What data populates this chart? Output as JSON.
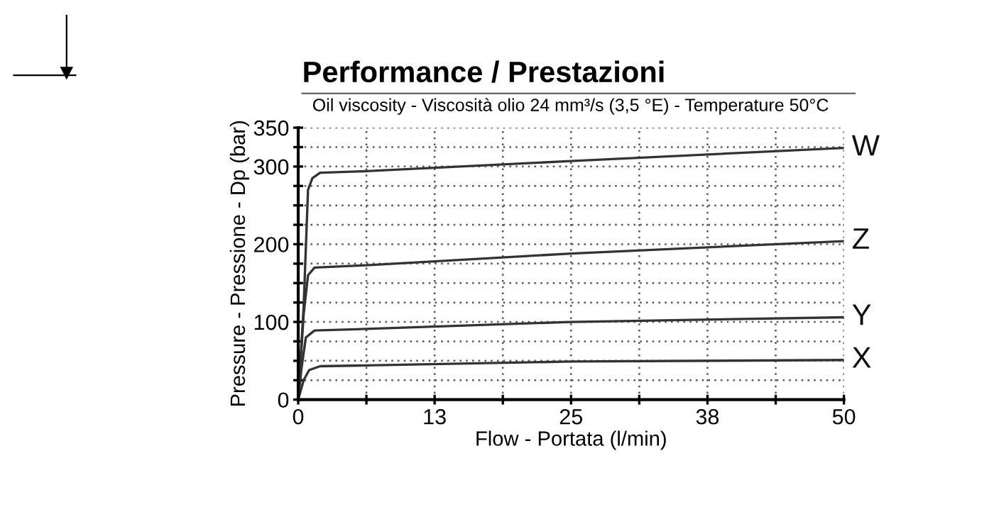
{
  "chart_data": {
    "type": "line",
    "title": "Performance / Prestazioni",
    "subtitle": "Oil viscosity - Viscosità olio 24 mm³/s (3,5 °E) - Temperature 50°C",
    "xlabel": "Flow - Portata (l/min)",
    "ylabel": "Pressure - Pressione - Dp (bar)",
    "xlim": [
      0,
      50
    ],
    "ylim": [
      0,
      350
    ],
    "xticks": [
      0,
      {
        "value": 6.25,
        "label": null
      },
      {
        "value": 12.5,
        "label": "13"
      },
      {
        "value": 18.75,
        "label": null
      },
      25,
      {
        "value": 31.25,
        "label": null
      },
      {
        "value": 37.5,
        "label": "38"
      },
      {
        "value": 43.75,
        "label": null
      },
      50
    ],
    "yticks": [
      0,
      {
        "value": 25,
        "label": null
      },
      {
        "value": 50,
        "label": null
      },
      {
        "value": 75,
        "label": null
      },
      100,
      {
        "value": 125,
        "label": null
      },
      {
        "value": 150,
        "label": null
      },
      {
        "value": 175,
        "label": null
      },
      200,
      {
        "value": 225,
        "label": null
      },
      {
        "value": 250,
        "label": null
      },
      {
        "value": 275,
        "label": null
      },
      300,
      {
        "value": 325,
        "label": null
      },
      350
    ],
    "grid": true,
    "line_style": "solid",
    "marker": "none",
    "series": [
      {
        "name": "W",
        "color": "#333333",
        "x": [
          0,
          0.5,
          0.9,
          1.3,
          2,
          6.25,
          25,
          50
        ],
        "values": [
          0,
          120,
          270,
          285,
          292,
          294,
          307,
          324
        ]
      },
      {
        "name": "Z",
        "color": "#333333",
        "x": [
          0,
          0.5,
          0.9,
          1.5,
          6.25,
          25,
          50
        ],
        "values": [
          0,
          110,
          160,
          170,
          173,
          188,
          204
        ]
      },
      {
        "name": "Y",
        "color": "#333333",
        "x": [
          0,
          0.3,
          0.7,
          1.5,
          6.25,
          25,
          50
        ],
        "values": [
          0,
          40,
          80,
          89,
          91,
          100,
          106
        ]
      },
      {
        "name": "X",
        "color": "#333333",
        "x": [
          0,
          0.5,
          1,
          2,
          6.25,
          25,
          50
        ],
        "values": [
          0,
          25,
          38,
          43,
          44,
          49,
          51
        ]
      }
    ]
  }
}
